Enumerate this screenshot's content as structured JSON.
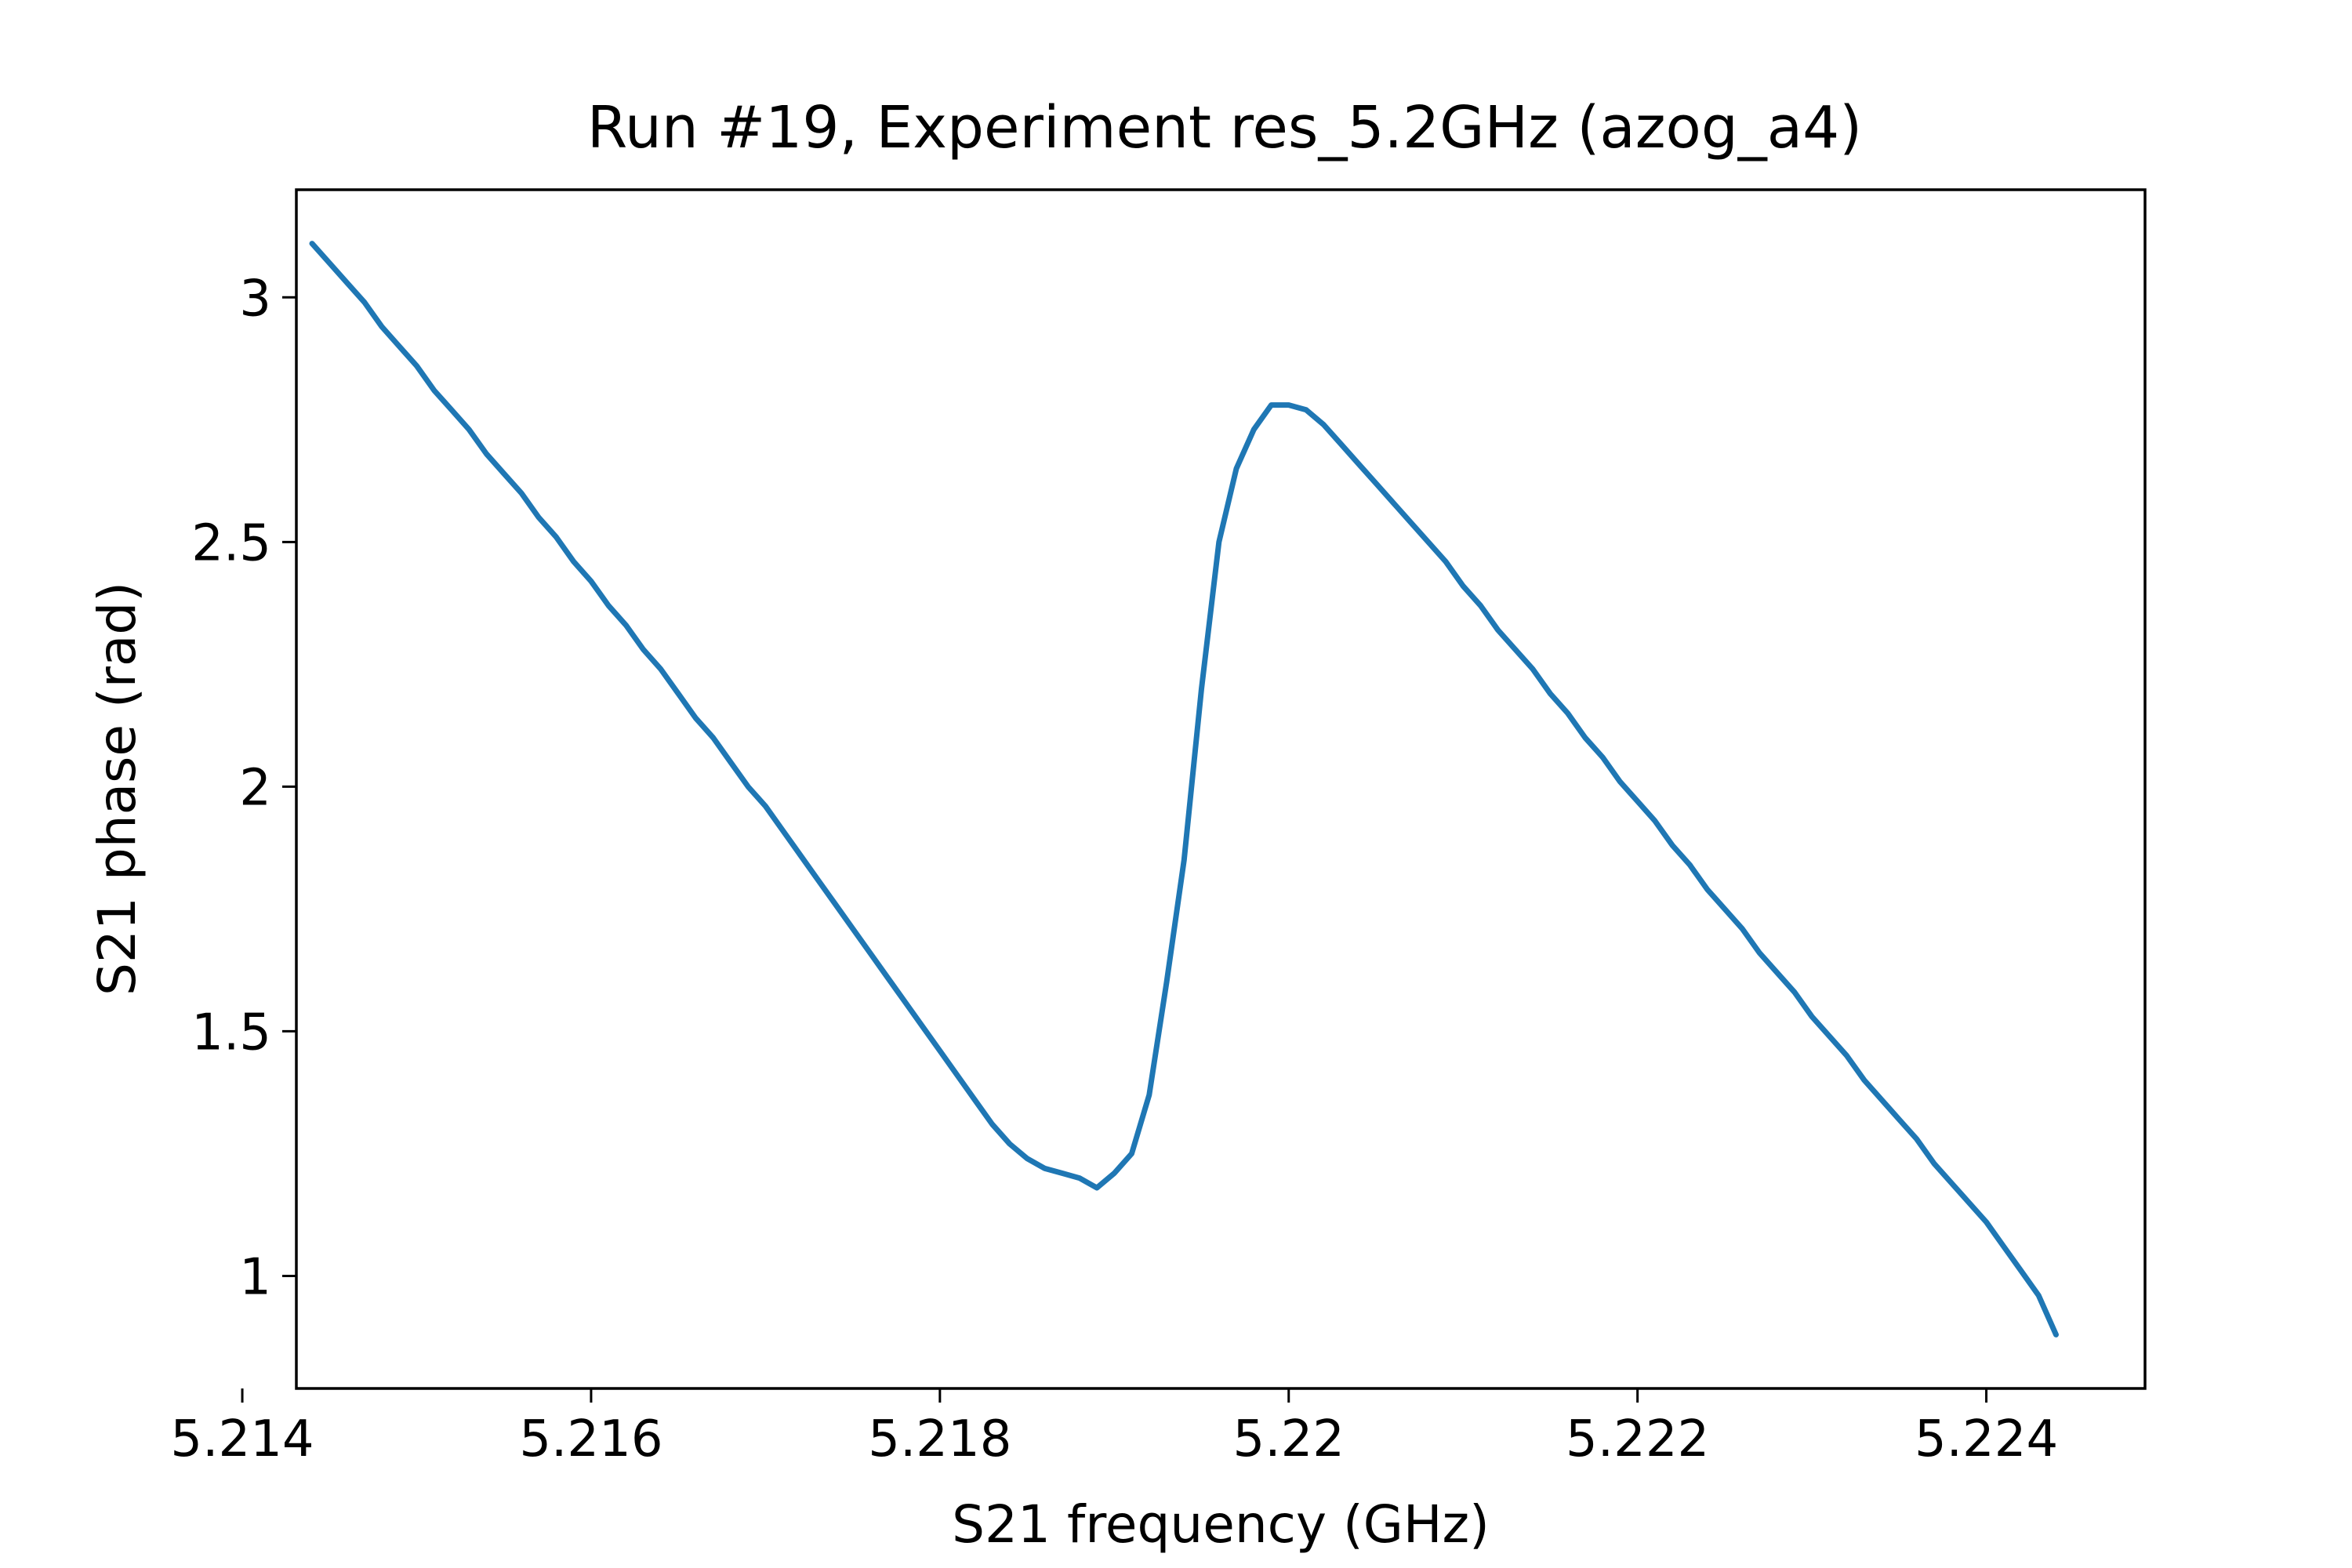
{
  "chart_data": {
    "type": "line",
    "title": "Run #19, Experiment res_5.2GHz (azog_a4)",
    "xlabel": "S21 frequency (GHz)",
    "ylabel": "S21 phase (rad)",
    "xlim": [
      5.21431,
      5.22491
    ],
    "ylim": [
      0.77,
      3.22
    ],
    "grid": false,
    "xticks": [
      5.214,
      5.216,
      5.218,
      5.22,
      5.222,
      5.224
    ],
    "xtick_labels": [
      "5.214",
      "5.216",
      "5.218",
      "5.22",
      "5.222",
      "5.224"
    ],
    "yticks": [
      1,
      1.5,
      2,
      2.5,
      3
    ],
    "ytick_labels": [
      "1",
      "1.5",
      "2",
      "2.5",
      "3"
    ],
    "series": [
      {
        "color": "#1f77b4",
        "x": [
          5.2144,
          5.2145,
          5.2146,
          5.2147,
          5.2148,
          5.2149,
          5.215,
          5.2151,
          5.2152,
          5.2153,
          5.2154,
          5.2155,
          5.2156,
          5.2157,
          5.2158,
          5.2159,
          5.216,
          5.2161,
          5.2162,
          5.2163,
          5.2164,
          5.2165,
          5.2166,
          5.2167,
          5.2168,
          5.2169,
          5.217,
          5.2171,
          5.2172,
          5.2173,
          5.2174,
          5.2175,
          5.2176,
          5.2177,
          5.2178,
          5.2179,
          5.218,
          5.2181,
          5.2182,
          5.2183,
          5.2184,
          5.2185,
          5.2186,
          5.2187,
          5.2188,
          5.2189,
          5.219,
          5.2191,
          5.2192,
          5.2193,
          5.2194,
          5.2195,
          5.2196,
          5.2197,
          5.2198,
          5.2199,
          5.22,
          5.2201,
          5.2202,
          5.2203,
          5.2204,
          5.2205,
          5.2206,
          5.2207,
          5.2208,
          5.2209,
          5.221,
          5.2211,
          5.2212,
          5.2213,
          5.2214,
          5.2215,
          5.2216,
          5.2217,
          5.2218,
          5.2219,
          5.222,
          5.2221,
          5.2222,
          5.2223,
          5.2224,
          5.2225,
          5.2226,
          5.2227,
          5.2228,
          5.2229,
          5.223,
          5.2231,
          5.2232,
          5.2233,
          5.2234,
          5.2235,
          5.2236,
          5.2237,
          5.2238,
          5.2239,
          5.224,
          5.2241,
          5.2242,
          5.2243,
          5.2244
        ],
        "y": [
          3.11,
          3.07,
          3.03,
          2.99,
          2.94,
          2.9,
          2.86,
          2.81,
          2.77,
          2.73,
          2.68,
          2.64,
          2.6,
          2.55,
          2.51,
          2.46,
          2.42,
          2.37,
          2.33,
          2.28,
          2.24,
          2.19,
          2.14,
          2.1,
          2.05,
          2.0,
          1.96,
          1.91,
          1.86,
          1.81,
          1.76,
          1.71,
          1.66,
          1.61,
          1.56,
          1.51,
          1.46,
          1.41,
          1.36,
          1.31,
          1.27,
          1.24,
          1.22,
          1.21,
          1.2,
          1.18,
          1.21,
          1.25,
          1.37,
          1.6,
          1.85,
          2.2,
          2.5,
          2.65,
          2.73,
          2.78,
          2.78,
          2.77,
          2.74,
          2.7,
          2.66,
          2.62,
          2.58,
          2.54,
          2.5,
          2.46,
          2.41,
          2.37,
          2.32,
          2.28,
          2.24,
          2.19,
          2.15,
          2.1,
          2.06,
          2.01,
          1.97,
          1.93,
          1.88,
          1.84,
          1.79,
          1.75,
          1.71,
          1.66,
          1.62,
          1.58,
          1.53,
          1.49,
          1.45,
          1.4,
          1.36,
          1.32,
          1.28,
          1.23,
          1.19,
          1.15,
          1.11,
          1.06,
          1.01,
          0.96,
          0.88
        ]
      }
    ]
  }
}
